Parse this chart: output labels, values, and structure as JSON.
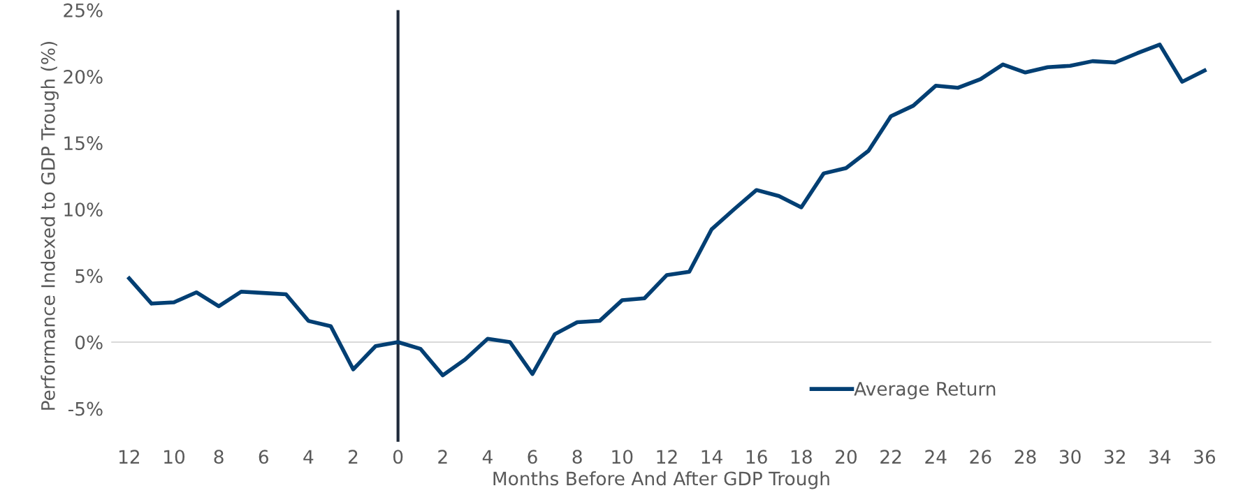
{
  "chart_data": {
    "type": "line",
    "xlabel": "Months Before And After GDP Trough",
    "ylabel": "Performance Indexed to GDP Trough (%)",
    "x": [
      -12,
      -11,
      -10,
      -9,
      -8,
      -7,
      -6,
      -5,
      -4,
      -3,
      -2,
      -1,
      0,
      1,
      2,
      3,
      4,
      5,
      6,
      7,
      8,
      9,
      10,
      11,
      12,
      13,
      14,
      15,
      16,
      17,
      18,
      19,
      20,
      21,
      22,
      23,
      24,
      25,
      26,
      27,
      28,
      29,
      30,
      31,
      32,
      33,
      34,
      35,
      36
    ],
    "series": [
      {
        "name": "Average Return",
        "color": "#023f73",
        "values": [
          4.8,
          2.9,
          3.0,
          3.75,
          2.7,
          3.8,
          3.7,
          3.6,
          1.6,
          1.2,
          -2.05,
          -0.3,
          0,
          -0.5,
          -2.5,
          -1.3,
          0.25,
          0,
          -2.4,
          0.6,
          1.5,
          1.6,
          3.15,
          3.3,
          5.05,
          5.3,
          8.5,
          10.0,
          11.45,
          11.0,
          10.15,
          12.7,
          13.1,
          14.4,
          17.0,
          17.8,
          19.3,
          19.15,
          19.8,
          20.9,
          20.3,
          20.7,
          20.8,
          21.15,
          21.05,
          21.75,
          22.4,
          19.6,
          20.45
        ]
      }
    ],
    "xlim": [
      -12.8,
      36.3
    ],
    "xticks": [
      {
        "value": -12,
        "label": "12"
      },
      {
        "value": -10,
        "label": "10"
      },
      {
        "value": -8,
        "label": "8"
      },
      {
        "value": -6,
        "label": "6"
      },
      {
        "value": -4,
        "label": "4"
      },
      {
        "value": -2,
        "label": "2"
      },
      0,
      2,
      4,
      6,
      8,
      10,
      12,
      14,
      16,
      18,
      20,
      22,
      24,
      26,
      28,
      30,
      32,
      34,
      36
    ],
    "ylim": [
      -7.5,
      25
    ],
    "yticks": [
      {
        "value": -5,
        "label": "-5%"
      },
      {
        "value": 0,
        "label": "0%"
      },
      {
        "value": 5,
        "label": "5%"
      },
      {
        "value": 10,
        "label": "10%"
      },
      {
        "value": 15,
        "label": "15%"
      },
      {
        "value": 20,
        "label": "20%"
      },
      {
        "value": 25,
        "label": "25%"
      }
    ],
    "ref_lines": [
      {
        "axis": "y",
        "value": 0,
        "color": "#d9d9d9"
      },
      {
        "axis": "x",
        "value": 0,
        "color": "#1f2a3a"
      }
    ],
    "legend": "bottom right",
    "grid": false,
    "marker": "none",
    "line_style": "solid"
  }
}
